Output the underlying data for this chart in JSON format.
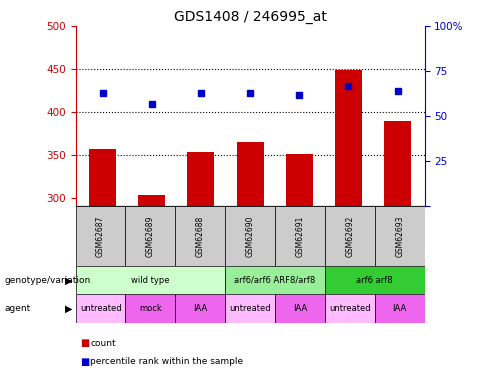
{
  "title": "GDS1408 / 246995_at",
  "samples": [
    "GSM62687",
    "GSM62689",
    "GSM62688",
    "GSM62690",
    "GSM62691",
    "GSM62692",
    "GSM62693"
  ],
  "bar_values": [
    357,
    303,
    353,
    365,
    351,
    449,
    390
  ],
  "dot_values": [
    63,
    57,
    63,
    63,
    62,
    67,
    64
  ],
  "ylim_left": [
    290,
    500
  ],
  "ylim_right": [
    0,
    100
  ],
  "yticks_left": [
    300,
    350,
    400,
    450,
    500
  ],
  "yticks_right": [
    0,
    25,
    50,
    75,
    100
  ],
  "bar_color": "#cc0000",
  "dot_color": "#0000cc",
  "bar_bottom": 290,
  "geno_groups": [
    {
      "label": "wild type",
      "start": 0,
      "end": 3,
      "color": "#ccffcc"
    },
    {
      "label": "arf6/arf6 ARF8/arf8",
      "start": 3,
      "end": 5,
      "color": "#99ee99"
    },
    {
      "label": "arf6 arf8",
      "start": 5,
      "end": 7,
      "color": "#33cc33"
    }
  ],
  "agent_groups": [
    {
      "label": "untreated",
      "start": 0,
      "end": 1,
      "color": "#ffbbff"
    },
    {
      "label": "mock",
      "start": 1,
      "end": 2,
      "color": "#ee66ee"
    },
    {
      "label": "IAA",
      "start": 2,
      "end": 3,
      "color": "#ee66ee"
    },
    {
      "label": "untreated",
      "start": 3,
      "end": 4,
      "color": "#ffbbff"
    },
    {
      "label": "IAA",
      "start": 4,
      "end": 5,
      "color": "#ee66ee"
    },
    {
      "label": "untreated",
      "start": 5,
      "end": 6,
      "color": "#ffbbff"
    },
    {
      "label": "IAA",
      "start": 6,
      "end": 7,
      "color": "#ee66ee"
    }
  ],
  "legend_count_color": "#cc0000",
  "legend_dot_color": "#0000cc",
  "left_axis_color": "#cc0000",
  "right_axis_color": "#0000cc",
  "grid_lines": [
    350,
    400,
    450
  ],
  "sample_color": "#cccccc"
}
